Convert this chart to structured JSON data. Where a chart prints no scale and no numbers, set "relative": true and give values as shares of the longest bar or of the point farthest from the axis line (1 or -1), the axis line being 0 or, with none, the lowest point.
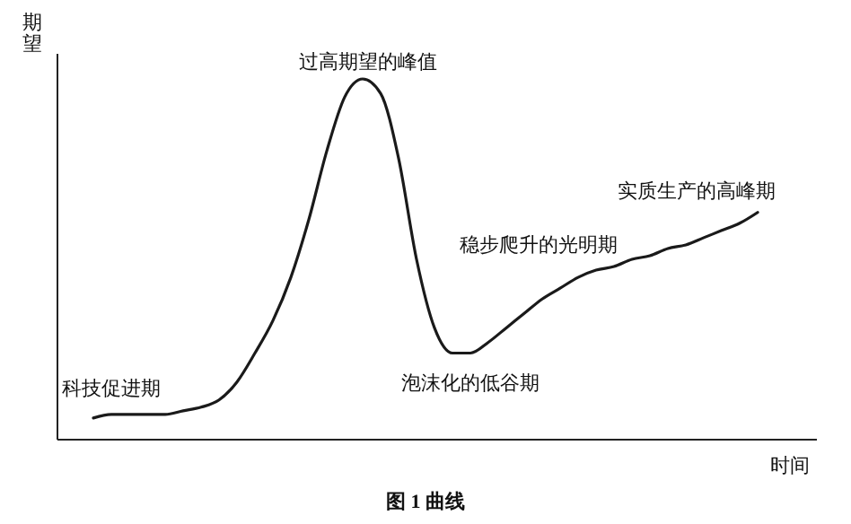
{
  "chart_data": {
    "type": "line",
    "title": "图 1 曲线",
    "xlabel": "时间",
    "ylabel": "期望",
    "relative": true,
    "categories": [
      null,
      null,
      null,
      null,
      null,
      null,
      null,
      null,
      null,
      null,
      null,
      null,
      null,
      null,
      null,
      null,
      null,
      null,
      null,
      null,
      null,
      null,
      null,
      null,
      null,
      null,
      null,
      null,
      null,
      null,
      null,
      null,
      null,
      null,
      null,
      null,
      null,
      null
    ],
    "series": [
      {
        "color": "#1a1a1a",
        "values": [
          0.06,
          0.07,
          0.07,
          0.07,
          0.07,
          0.08,
          0.09,
          0.11,
          0.16,
          0.24,
          0.33,
          0.45,
          0.61,
          0.8,
          0.95,
          1,
          0.96,
          0.78,
          0.5,
          0.31,
          0.24,
          0.24,
          0.27,
          0.31,
          0.35,
          0.39,
          0.42,
          0.45,
          0.47,
          0.48,
          0.5,
          0.51,
          0.53,
          0.54,
          0.56,
          0.58,
          0.6,
          0.63
        ]
      }
    ],
    "annotations": [
      "过高期望的峰值",
      "科技促进期",
      "泡沫化的低谷期",
      "稳步爬升的光明期",
      "实质生产的高峰期"
    ]
  }
}
